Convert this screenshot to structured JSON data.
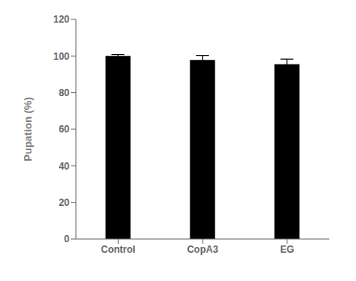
{
  "chart_data": {
    "type": "bar",
    "categories": [
      "Control",
      "CopA3",
      "EG"
    ],
    "values": [
      100.0,
      97.8,
      95.5
    ],
    "errors": [
      0.8,
      2.5,
      2.8
    ],
    "color": "#000000",
    "ylabel": "Pupation (%)",
    "ylim": [
      0,
      120
    ],
    "yticks": [
      0,
      20,
      40,
      60,
      80,
      100,
      120
    ]
  }
}
